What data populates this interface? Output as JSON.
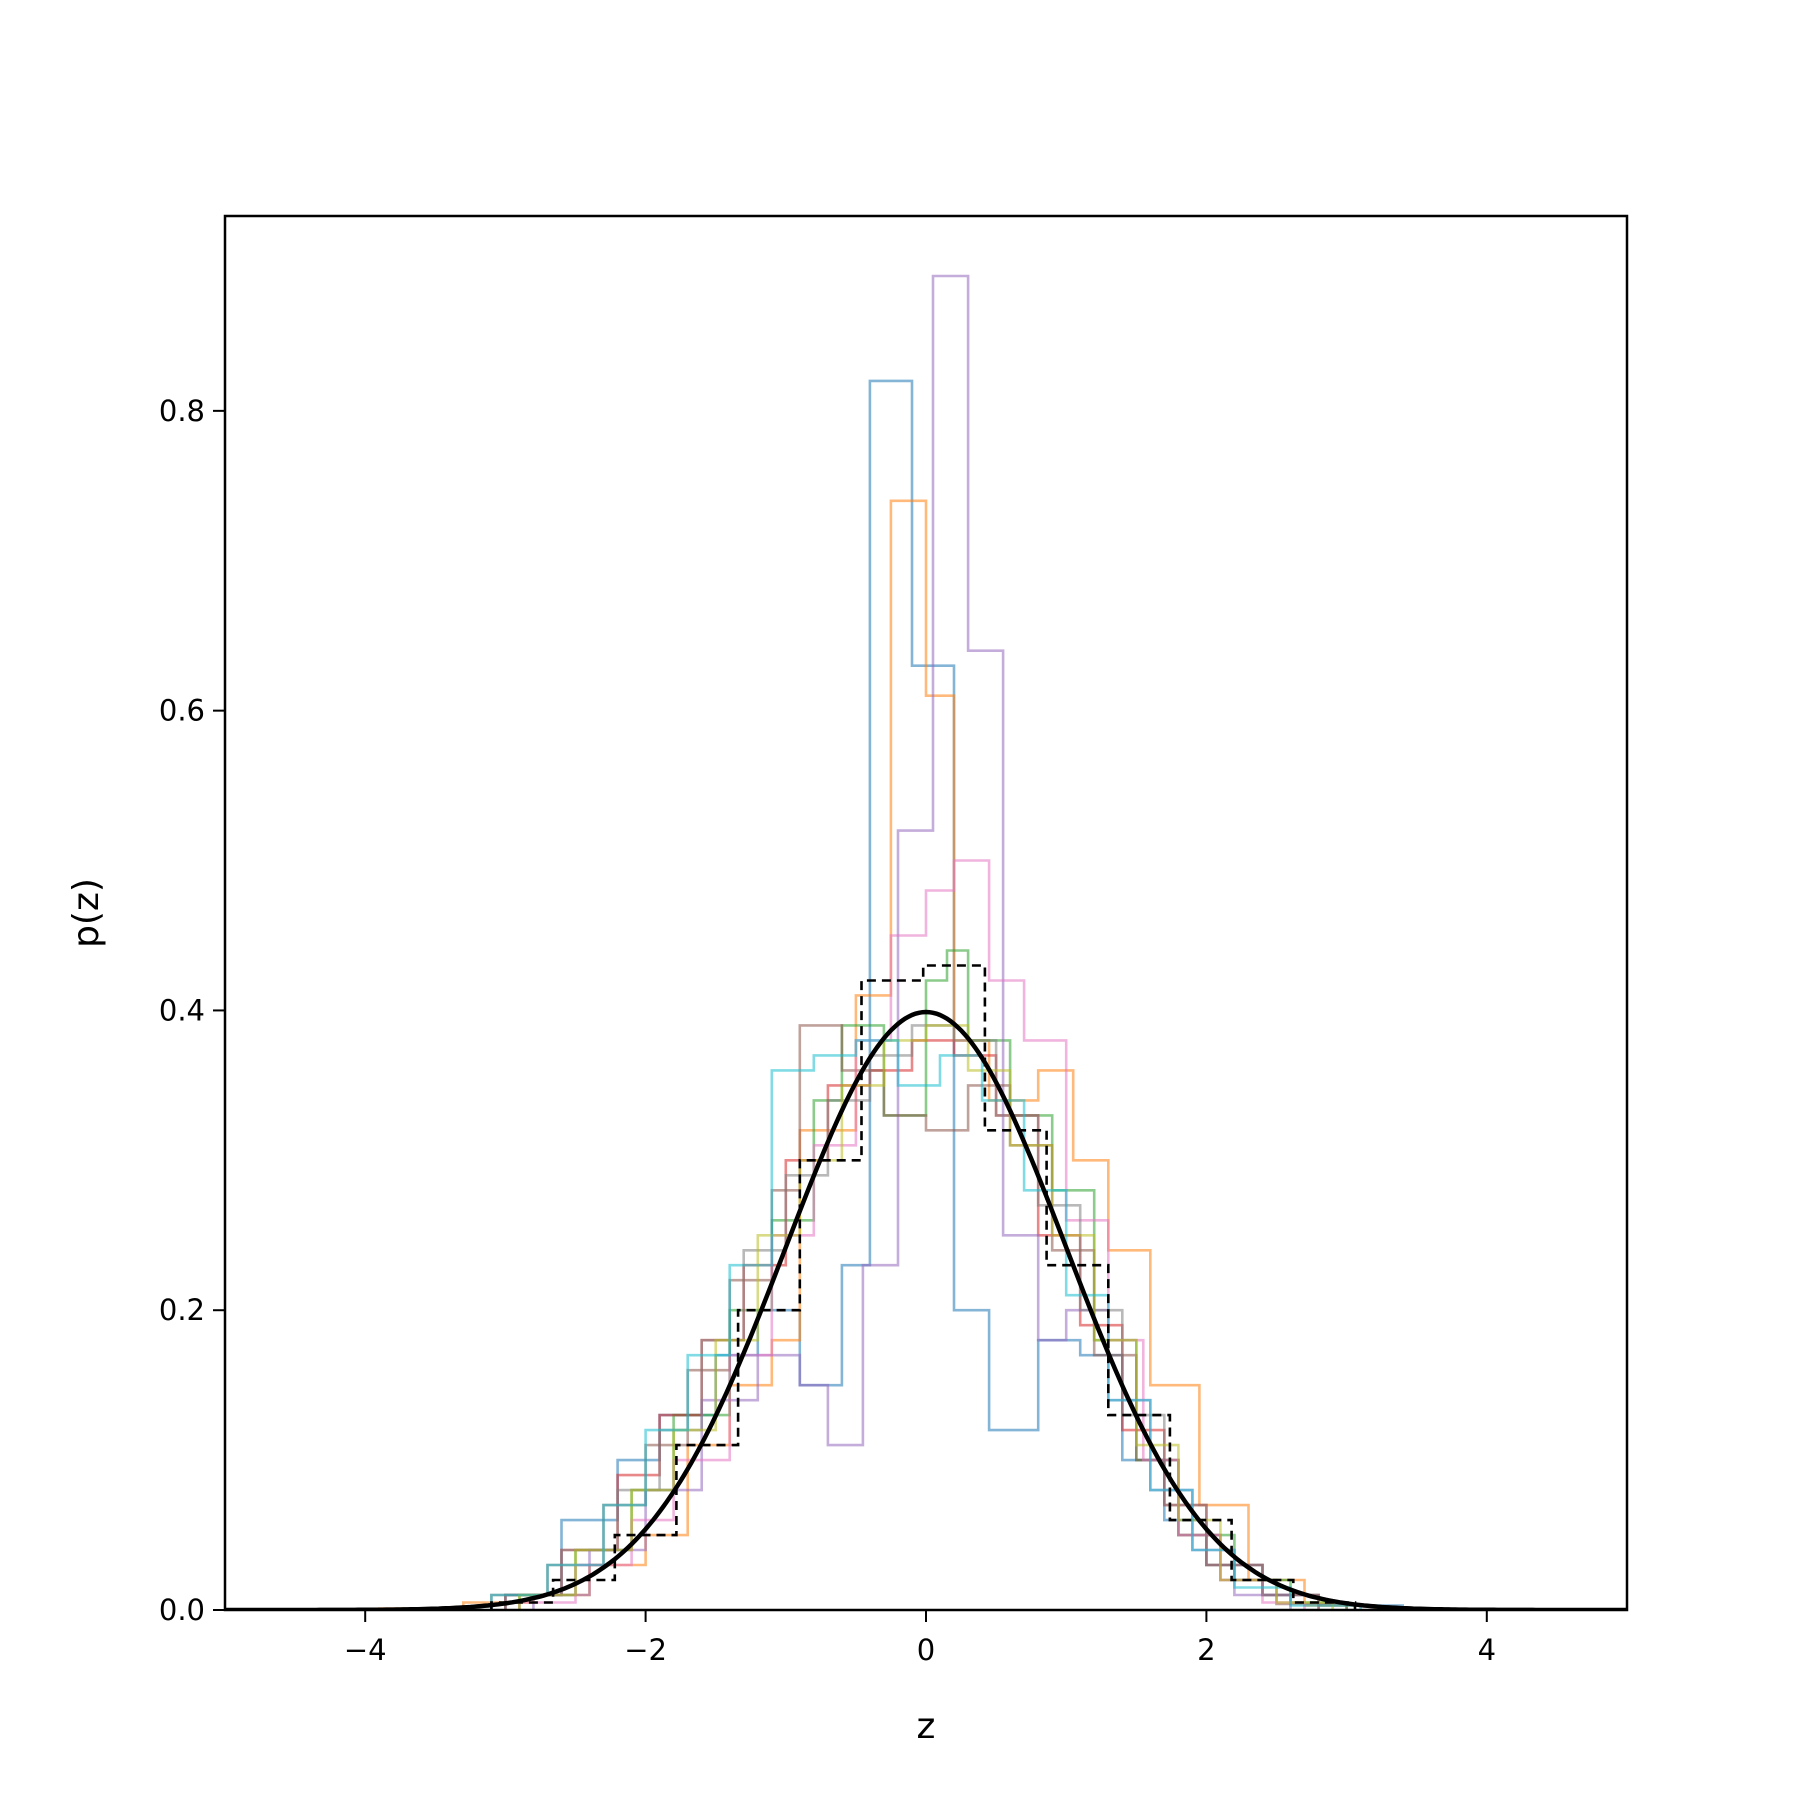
{
  "chart_data": {
    "type": "line",
    "title": "",
    "xlabel": "z",
    "ylabel": "p(z)",
    "xlim": [
      -5,
      5
    ],
    "ylim": [
      0,
      0.93
    ],
    "xticks": [
      -4,
      -2,
      0,
      2,
      4
    ],
    "xtick_labels": [
      "−4",
      "−2",
      "0",
      "2",
      "4"
    ],
    "yticks": [
      0.0,
      0.2,
      0.4,
      0.6,
      0.8
    ],
    "ytick_labels": [
      "0.0",
      "0.2",
      "0.4",
      "0.6",
      "0.8"
    ],
    "grid": false,
    "legend": "none",
    "step_series": [
      {
        "color": "#1f77b4",
        "edges": [
          -3.0,
          -2.6,
          -2.2,
          -1.9,
          -1.5,
          -1.2,
          -0.9,
          -0.6,
          -0.4,
          -0.1,
          0.2,
          0.45,
          0.8,
          1.1,
          1.4,
          1.7,
          2.0,
          2.4,
          2.8,
          3.4
        ],
        "heights": [
          0.01,
          0.06,
          0.1,
          0.13,
          0.17,
          0.2,
          0.15,
          0.23,
          0.82,
          0.63,
          0.2,
          0.12,
          0.18,
          0.17,
          0.1,
          0.06,
          0.03,
          0.01,
          0.003
        ]
      },
      {
        "color": "#ff7f0e",
        "edges": [
          -3.9,
          -3.3,
          -2.8,
          -2.4,
          -2.0,
          -1.7,
          -1.4,
          -1.1,
          -0.9,
          -0.5,
          -0.25,
          0.0,
          0.2,
          0.45,
          0.8,
          1.05,
          1.3,
          1.6,
          1.95,
          2.3,
          2.7,
          3.2
        ],
        "heights": [
          0.001,
          0.005,
          0.01,
          0.03,
          0.05,
          0.11,
          0.15,
          0.18,
          0.32,
          0.41,
          0.74,
          0.61,
          0.38,
          0.34,
          0.36,
          0.3,
          0.24,
          0.15,
          0.07,
          0.02,
          0.003
        ]
      },
      {
        "color": "#2ca02c",
        "edges": [
          -2.9,
          -2.5,
          -2.1,
          -1.8,
          -1.4,
          -1.1,
          -0.8,
          -0.6,
          -0.3,
          0.0,
          0.15,
          0.3,
          0.6,
          0.9,
          1.2,
          1.5,
          1.8,
          2.2,
          2.6,
          3.0
        ],
        "heights": [
          0.01,
          0.04,
          0.08,
          0.13,
          0.2,
          0.26,
          0.34,
          0.39,
          0.33,
          0.42,
          0.44,
          0.38,
          0.33,
          0.28,
          0.18,
          0.1,
          0.05,
          0.02,
          0.005
        ]
      },
      {
        "color": "#d62728",
        "edges": [
          -3.0,
          -2.6,
          -2.2,
          -1.9,
          -1.6,
          -1.3,
          -1.0,
          -0.7,
          -0.4,
          -0.1,
          0.2,
          0.5,
          0.8,
          1.1,
          1.4,
          1.7,
          2.0,
          2.4,
          2.8
        ],
        "heights": [
          0.01,
          0.04,
          0.09,
          0.13,
          0.18,
          0.23,
          0.3,
          0.35,
          0.36,
          0.38,
          0.37,
          0.33,
          0.25,
          0.19,
          0.12,
          0.07,
          0.03,
          0.01
        ]
      },
      {
        "color": "#9467bd",
        "edges": [
          -2.8,
          -2.4,
          -2.0,
          -1.6,
          -1.2,
          -0.9,
          -0.7,
          -0.45,
          -0.2,
          0.05,
          0.3,
          0.55,
          0.8,
          1.0,
          1.3,
          1.6,
          1.9,
          2.2,
          2.6
        ],
        "heights": [
          0.01,
          0.04,
          0.08,
          0.14,
          0.17,
          0.15,
          0.11,
          0.23,
          0.52,
          0.89,
          0.64,
          0.25,
          0.18,
          0.2,
          0.14,
          0.08,
          0.04,
          0.01
        ]
      },
      {
        "color": "#8c564b",
        "edges": [
          -3.1,
          -2.7,
          -2.3,
          -2.0,
          -1.7,
          -1.4,
          -1.1,
          -0.9,
          -0.6,
          -0.3,
          0.0,
          0.3,
          0.6,
          0.9,
          1.2,
          1.5,
          1.8,
          2.1,
          2.5,
          3.0
        ],
        "heights": [
          0.01,
          0.03,
          0.07,
          0.11,
          0.16,
          0.22,
          0.28,
          0.39,
          0.36,
          0.33,
          0.32,
          0.35,
          0.31,
          0.24,
          0.17,
          0.1,
          0.05,
          0.02,
          0.004
        ]
      },
      {
        "color": "#e377c2",
        "edges": [
          -2.9,
          -2.5,
          -2.1,
          -1.8,
          -1.4,
          -1.1,
          -0.8,
          -0.5,
          -0.25,
          0.0,
          0.2,
          0.45,
          0.7,
          1.0,
          1.3,
          1.55,
          1.8,
          2.1,
          2.4,
          2.7
        ],
        "heights": [
          0.005,
          0.03,
          0.06,
          0.1,
          0.17,
          0.25,
          0.31,
          0.38,
          0.45,
          0.48,
          0.5,
          0.42,
          0.38,
          0.26,
          0.18,
          0.1,
          0.05,
          0.02,
          0.005
        ]
      },
      {
        "color": "#7f7f7f",
        "edges": [
          -3.0,
          -2.6,
          -2.2,
          -1.9,
          -1.6,
          -1.3,
          -1.0,
          -0.7,
          -0.4,
          -0.1,
          0.2,
          0.5,
          0.8,
          1.1,
          1.4,
          1.7,
          2.0,
          2.4,
          2.8
        ],
        "heights": [
          0.01,
          0.04,
          0.08,
          0.12,
          0.18,
          0.24,
          0.29,
          0.34,
          0.37,
          0.39,
          0.38,
          0.33,
          0.27,
          0.2,
          0.13,
          0.07,
          0.03,
          0.01
        ]
      },
      {
        "color": "#bcbd22",
        "edges": [
          -2.9,
          -2.5,
          -2.1,
          -1.8,
          -1.5,
          -1.2,
          -0.9,
          -0.6,
          -0.3,
          0.0,
          0.3,
          0.6,
          0.9,
          1.2,
          1.5,
          1.8,
          2.1,
          2.5,
          2.9
        ],
        "heights": [
          0.01,
          0.04,
          0.08,
          0.12,
          0.18,
          0.25,
          0.3,
          0.35,
          0.38,
          0.39,
          0.36,
          0.31,
          0.25,
          0.18,
          0.11,
          0.06,
          0.02,
          0.005
        ]
      },
      {
        "color": "#17becf",
        "edges": [
          -3.1,
          -2.7,
          -2.3,
          -2.0,
          -1.7,
          -1.4,
          -1.1,
          -0.8,
          -0.5,
          -0.2,
          0.1,
          0.4,
          0.7,
          1.0,
          1.3,
          1.6,
          1.9,
          2.2,
          2.6,
          3.1
        ],
        "heights": [
          0.01,
          0.03,
          0.07,
          0.12,
          0.17,
          0.23,
          0.36,
          0.37,
          0.38,
          0.35,
          0.37,
          0.34,
          0.28,
          0.21,
          0.14,
          0.08,
          0.04,
          0.015,
          0.003
        ]
      }
    ],
    "reference_hist": {
      "color": "#000000",
      "style": "dashed",
      "edges": [
        -3.1,
        -2.66,
        -2.22,
        -1.78,
        -1.34,
        -0.9,
        -0.46,
        -0.02,
        0.42,
        0.86,
        1.3,
        1.74,
        2.18,
        2.62,
        3.06
      ],
      "heights": [
        0.005,
        0.02,
        0.05,
        0.11,
        0.2,
        0.3,
        0.42,
        0.43,
        0.32,
        0.23,
        0.13,
        0.06,
        0.02,
        0.005
      ]
    },
    "curve": {
      "label": "",
      "color": "#000000",
      "type": "normal-pdf",
      "mean": 0,
      "std": 1,
      "x_range": [
        -5,
        5
      ]
    }
  }
}
